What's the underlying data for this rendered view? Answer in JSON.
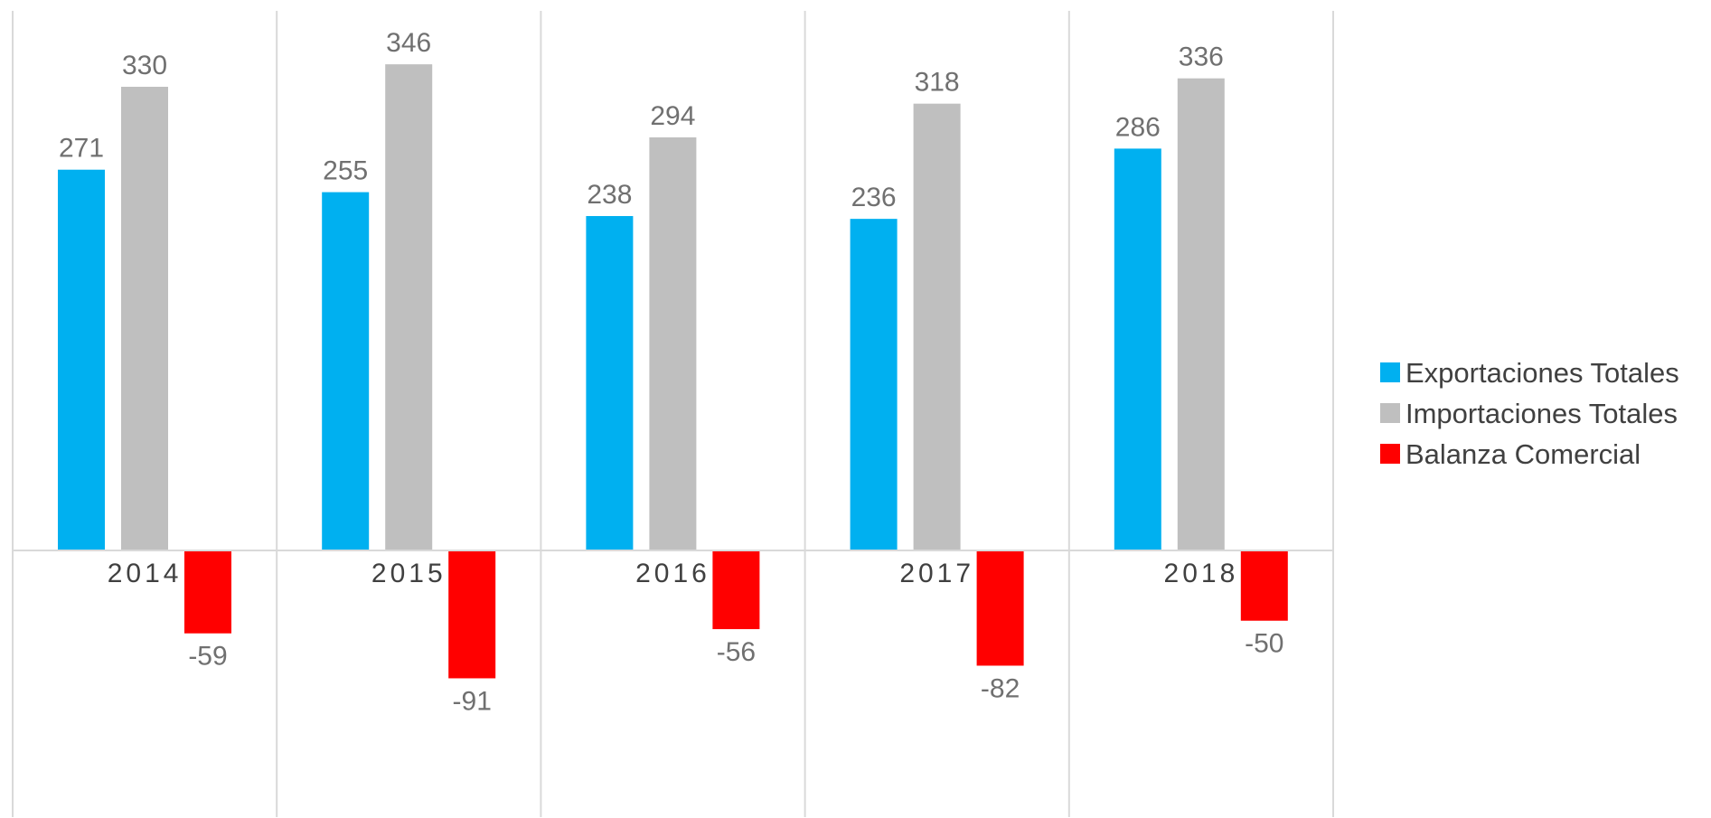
{
  "chart_data": {
    "type": "bar",
    "title": "",
    "xlabel": "",
    "ylabel": "",
    "categories": [
      "2014",
      "2015",
      "2016",
      "2017",
      "2018"
    ],
    "series": [
      {
        "name": "Exportaciones Totales",
        "color": "#00b0f0",
        "values": [
          271,
          255,
          238,
          236,
          286
        ]
      },
      {
        "name": "Importaciones Totales",
        "color": "#bfbfbf",
        "values": [
          330,
          346,
          294,
          318,
          336
        ]
      },
      {
        "name": "Balanza Comercial",
        "color": "#ff0000",
        "values": [
          -59,
          -91,
          -56,
          -82,
          -50
        ]
      }
    ],
    "ylim": [
      -197,
      400
    ],
    "grid": "vertical category separators",
    "legend_position": "right"
  }
}
